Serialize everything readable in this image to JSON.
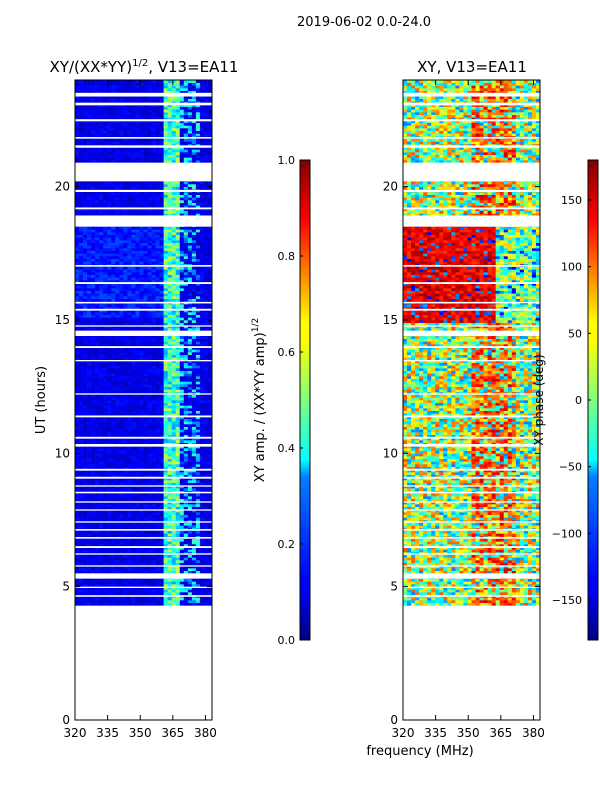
{
  "figure_title": "2019-06-02 0.0-24.0",
  "shared_xlabel": "frequency (MHz)",
  "chart_data": [
    {
      "type": "heatmap",
      "title": "XY/(XX*YY)^(1/2), V13=EA11",
      "title_main": "XY/(XX*YY)",
      "title_sup": "1/2",
      "title_suffix": ", V13=EA11",
      "xlabel": "frequency (MHz)",
      "ylabel": "UT (hours)",
      "xlim": [
        320,
        383
      ],
      "ylim": [
        0,
        24
      ],
      "xticks": [
        320,
        335,
        350,
        365,
        380
      ],
      "yticks": [
        0,
        5,
        10,
        15,
        20
      ],
      "data_time_range": [
        4.3,
        24.0
      ],
      "colorbar": {
        "label": "XY amp. / (XX*YY amp)^(1/2)",
        "label_main": "XY amp. / (XX*YY amp)",
        "label_sup": "1/2",
        "range": [
          0.0,
          1.0
        ],
        "ticks": [
          "0.0",
          "0.2",
          "0.4",
          "0.6",
          "0.8",
          "1.0"
        ],
        "colormap": "jet"
      }
    },
    {
      "type": "heatmap",
      "title": "XY, V13=EA11",
      "xlabel": "frequency (MHz)",
      "ylabel": "",
      "xlim": [
        320,
        383
      ],
      "ylim": [
        0,
        24
      ],
      "xticks": [
        320,
        335,
        350,
        365,
        380
      ],
      "yticks": [
        0,
        5,
        10,
        15,
        20
      ],
      "data_time_range": [
        4.3,
        24.0
      ],
      "colorbar": {
        "label": "XY phase (deg)",
        "range": [
          -180,
          180
        ],
        "ticks": [
          "-150",
          "-100",
          "-50",
          "0",
          "50",
          "100",
          "150"
        ],
        "colormap": "jet"
      }
    }
  ],
  "ut_gaps": [
    [
      23.38,
      23.52
    ],
    [
      23.05,
      23.15
    ],
    [
      22.45,
      22.53
    ],
    [
      21.8,
      21.86
    ],
    [
      21.46,
      21.55
    ],
    [
      20.2,
      20.9
    ],
    [
      19.8,
      19.88
    ],
    [
      19.15,
      19.22
    ],
    [
      18.5,
      18.92
    ],
    [
      17.0,
      17.06
    ],
    [
      16.35,
      16.42
    ],
    [
      15.62,
      15.68
    ],
    [
      15.35,
      15.42
    ],
    [
      14.75,
      14.8
    ],
    [
      14.4,
      14.6
    ],
    [
      13.95,
      14.02
    ],
    [
      13.45,
      13.5
    ],
    [
      12.2,
      12.25
    ],
    [
      11.35,
      11.42
    ],
    [
      10.55,
      10.62
    ],
    [
      10.25,
      10.35
    ],
    [
      9.35,
      9.42
    ],
    [
      9.05,
      9.12
    ],
    [
      8.75,
      8.8
    ],
    [
      8.5,
      8.56
    ],
    [
      8.15,
      8.2
    ],
    [
      7.85,
      7.9
    ],
    [
      7.4,
      7.45
    ],
    [
      7.1,
      7.16
    ],
    [
      6.8,
      6.86
    ],
    [
      6.45,
      6.52
    ],
    [
      6.2,
      6.25
    ],
    [
      5.75,
      5.8
    ],
    [
      5.3,
      5.5
    ],
    [
      4.95,
      5.0
    ],
    [
      4.62,
      4.68
    ]
  ]
}
